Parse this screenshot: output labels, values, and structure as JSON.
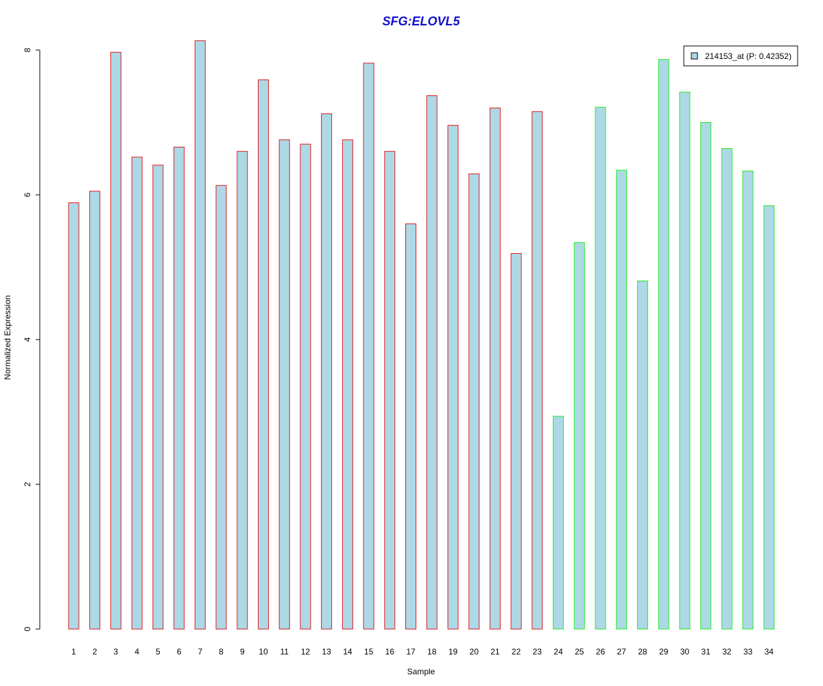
{
  "chart_data": {
    "type": "bar",
    "title": "SFG:ELOVL5",
    "xlabel": "Sample",
    "ylabel": "Normalized Expression",
    "ylim": [
      0,
      8.2
    ],
    "yticks": [
      0,
      2,
      4,
      6,
      8
    ],
    "grid": false,
    "legend_position": "top-right",
    "categories": [
      "1",
      "2",
      "3",
      "4",
      "5",
      "6",
      "7",
      "8",
      "9",
      "10",
      "11",
      "12",
      "13",
      "14",
      "15",
      "16",
      "17",
      "18",
      "19",
      "20",
      "21",
      "22",
      "23",
      "24",
      "25",
      "26",
      "27",
      "28",
      "29",
      "30",
      "31",
      "32",
      "33",
      "34"
    ],
    "series": [
      {
        "name": "214153_at (P: 0.42352)",
        "values": [
          5.89,
          6.05,
          7.97,
          6.52,
          6.41,
          6.66,
          8.13,
          6.13,
          6.6,
          7.59,
          6.76,
          6.7,
          7.12,
          6.76,
          7.82,
          6.6,
          5.6,
          7.37,
          6.96,
          6.29,
          7.2,
          5.19,
          7.15,
          2.94,
          5.34,
          7.21,
          6.34,
          4.81,
          7.87,
          7.42,
          7.0,
          6.64,
          6.33,
          5.85
        ]
      }
    ],
    "groups": [
      {
        "samples": "1-23",
        "border_color": "#e31a1c"
      },
      {
        "samples": "24-34",
        "border_color": "#22ee22"
      }
    ],
    "group_split_index": 23,
    "colors": {
      "title": "#1010cc",
      "fill": "#add8e6",
      "group1_border": "#e31a1c",
      "group2_border": "#22ee22",
      "axis": "#000000"
    }
  }
}
